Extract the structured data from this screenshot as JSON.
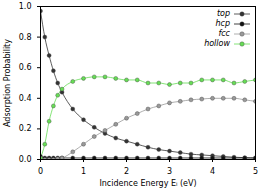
{
  "chart_data": {
    "type": "line",
    "x_label": "Incidence Energy Eᵢ (eV)",
    "y_label": "Adsorption Probability",
    "x": [
      0,
      0.1,
      0.2,
      0.3,
      0.4,
      0.5,
      0.75,
      1.0,
      1.25,
      1.5,
      1.75,
      2.0,
      2.25,
      2.5,
      2.75,
      3.0,
      3.25,
      3.5,
      3.75,
      4.0,
      4.25,
      4.5,
      4.75,
      5.0
    ],
    "series": [
      {
        "name": "top",
        "color": "#333333",
        "values": [
          0.97,
          0.8,
          0.68,
          0.58,
          0.5,
          0.44,
          0.33,
          0.26,
          0.21,
          0.17,
          0.14,
          0.12,
          0.1,
          0.08,
          0.065,
          0.055,
          0.045,
          0.035,
          0.03,
          0.025,
          0.02,
          0.015,
          0.012,
          0.01
        ]
      },
      {
        "name": "hcp",
        "color": "#111111",
        "values": [
          0.02,
          0.01,
          0.01,
          0.01,
          0.01,
          0.01,
          0.01,
          0.01,
          0.01,
          0.01,
          0.01,
          0.01,
          0.01,
          0.01,
          0.01,
          0.01,
          0.01,
          0.01,
          0.01,
          0.01,
          0.01,
          0.01,
          0.01,
          0.01
        ]
      },
      {
        "name": "fcc",
        "color": "#999999",
        "values": [
          0,
          0,
          0,
          0,
          0.005,
          0.01,
          0.05,
          0.1,
          0.15,
          0.19,
          0.23,
          0.27,
          0.3,
          0.33,
          0.35,
          0.37,
          0.38,
          0.39,
          0.395,
          0.4,
          0.4,
          0.4,
          0.39,
          0.38
        ]
      },
      {
        "name": "hollow",
        "color": "#66dd55",
        "values": [
          0.01,
          0.1,
          0.25,
          0.35,
          0.42,
          0.46,
          0.51,
          0.53,
          0.54,
          0.54,
          0.53,
          0.52,
          0.52,
          0.5,
          0.5,
          0.49,
          0.5,
          0.5,
          0.52,
          0.52,
          0.52,
          0.5,
          0.51,
          0.52
        ]
      }
    ],
    "xlim": [
      0,
      5
    ],
    "xticks": [
      0,
      1,
      2,
      3,
      4,
      5
    ],
    "ylim": [
      0,
      1
    ],
    "yticks": [
      {
        "value": 0,
        "label": "0.0"
      },
      {
        "value": 0.2,
        "label": "0.2"
      },
      {
        "value": 0.4,
        "label": "0.4"
      },
      {
        "value": 0.6,
        "label": "0.6"
      },
      {
        "value": 0.8,
        "label": "0.8"
      },
      {
        "value": 1,
        "label": "1.0"
      }
    ],
    "legend": "top right",
    "marker": "circle",
    "line_style": "solid",
    "grid": false
  }
}
